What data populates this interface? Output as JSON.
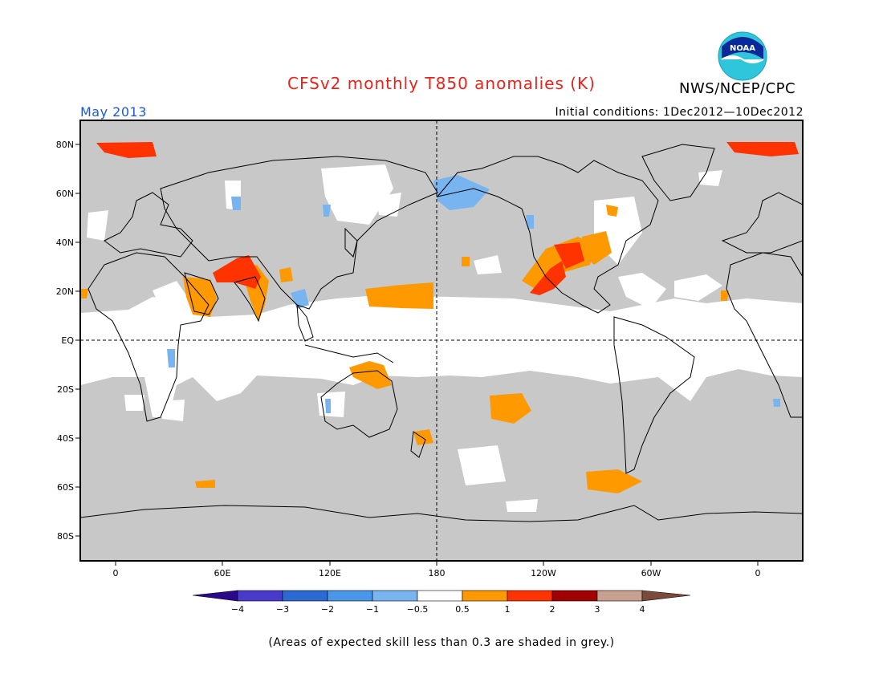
{
  "header": {
    "title": "CFSv2 monthly T850 anomalies (K)",
    "organization": "NWS/NCEP/CPC",
    "logo_text": "NOAA",
    "month": "May 2013",
    "initial_conditions": "Initial conditions: 1Dec2012—10Dec2012"
  },
  "map": {
    "lat_labels": [
      "80N",
      "60N",
      "40N",
      "20N",
      "EQ",
      "20S",
      "40S",
      "60S",
      "80S"
    ],
    "lon_labels": [
      "0",
      "60E",
      "120E",
      "180",
      "120W",
      "60W",
      "0"
    ],
    "grey_meaning": "skill < 0.3",
    "colors": {
      "ocean_grey": "#c8c8c8",
      "neutral": "#ffffff",
      "pos_0_5": "#ff9900",
      "pos_1": "#ff3300",
      "pos_2": "#a00000",
      "pos_3": "#c8a090",
      "pos_4": "#7a4a3a",
      "neg_0_5": "#78b4f0",
      "neg_1": "#4a96e8",
      "neg_2": "#2b6ad0",
      "neg_3": "#4a3acc",
      "neg_4": "#2a0a8a"
    }
  },
  "colorbar": {
    "ticks": [
      "−4",
      "−3",
      "−2",
      "−1",
      "−0.5",
      "0.5",
      "1",
      "2",
      "3",
      "4"
    ],
    "colors": [
      "#2a0a8a",
      "#4a3acc",
      "#2b6ad0",
      "#4a96e8",
      "#78b4f0",
      "#ffffff",
      "#ff9900",
      "#ff3300",
      "#a00000",
      "#c8a090",
      "#7a4a3a"
    ]
  },
  "footnote": "(Areas of expected skill less than 0.3 are shaded in grey.)"
}
